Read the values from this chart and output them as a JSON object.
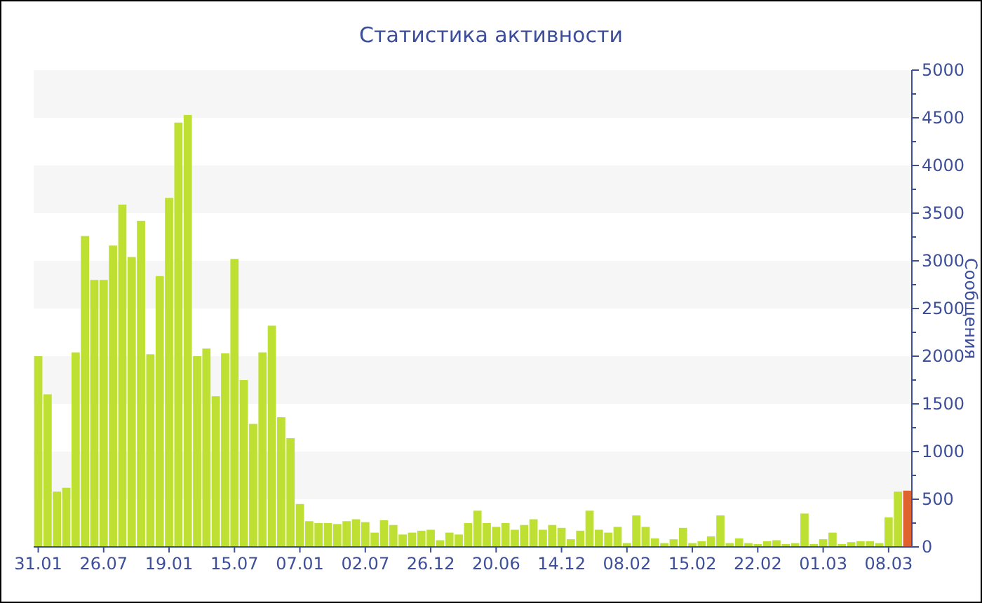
{
  "chart_data": {
    "type": "bar",
    "title": "Статистика активности",
    "ylabel": "Сообщения",
    "categories": [
      "31.01",
      null,
      null,
      null,
      null,
      null,
      null,
      "26.07",
      null,
      null,
      null,
      null,
      null,
      null,
      "19.01",
      null,
      null,
      null,
      null,
      null,
      null,
      "15.07",
      null,
      null,
      null,
      null,
      null,
      null,
      "07.01",
      null,
      null,
      null,
      null,
      null,
      null,
      "02.07",
      null,
      null,
      null,
      null,
      null,
      null,
      "26.12",
      null,
      null,
      null,
      null,
      null,
      null,
      "20.06",
      null,
      null,
      null,
      null,
      null,
      null,
      "14.12",
      null,
      null,
      null,
      null,
      null,
      null,
      "08.02",
      null,
      null,
      null,
      null,
      null,
      null,
      "15.02",
      null,
      null,
      null,
      null,
      null,
      null,
      "22.02",
      null,
      null,
      null,
      null,
      null,
      null,
      "01.03",
      null,
      null,
      null,
      null,
      null,
      null,
      "08.03",
      null,
      null
    ],
    "values": [
      2000,
      1600,
      580,
      620,
      2040,
      3260,
      2800,
      2800,
      3160,
      3590,
      3040,
      3420,
      2020,
      2840,
      3660,
      4450,
      4530,
      2000,
      2080,
      1580,
      2030,
      3020,
      1750,
      1290,
      2040,
      2320,
      1360,
      1140,
      450,
      270,
      250,
      250,
      240,
      270,
      290,
      260,
      150,
      280,
      230,
      130,
      150,
      170,
      180,
      70,
      150,
      130,
      250,
      380,
      250,
      210,
      250,
      180,
      230,
      290,
      180,
      230,
      200,
      80,
      170,
      380,
      180,
      150,
      210,
      40,
      330,
      210,
      90,
      40,
      80,
      200,
      40,
      60,
      110,
      330,
      40,
      90,
      40,
      30,
      60,
      70,
      30,
      40,
      350,
      30,
      80,
      150,
      30,
      50,
      60,
      60,
      40,
      310,
      580,
      590
    ],
    "colors": [
      "#bde033",
      "#bde033",
      "#bde033",
      "#bde033",
      "#bde033",
      "#bde033",
      "#bde033",
      "#bde033",
      "#bde033",
      "#bde033",
      "#bde033",
      "#bde033",
      "#bde033",
      "#bde033",
      "#bde033",
      "#bde033",
      "#bde033",
      "#bde033",
      "#bde033",
      "#bde033",
      "#bde033",
      "#bde033",
      "#bde033",
      "#bde033",
      "#bde033",
      "#bde033",
      "#bde033",
      "#bde033",
      "#bde033",
      "#bde033",
      "#bde033",
      "#bde033",
      "#bde033",
      "#bde033",
      "#bde033",
      "#bde033",
      "#bde033",
      "#bde033",
      "#bde033",
      "#bde033",
      "#bde033",
      "#bde033",
      "#bde033",
      "#bde033",
      "#bde033",
      "#bde033",
      "#bde033",
      "#bde033",
      "#bde033",
      "#bde033",
      "#bde033",
      "#bde033",
      "#bde033",
      "#bde033",
      "#bde033",
      "#bde033",
      "#bde033",
      "#bde033",
      "#bde033",
      "#bde033",
      "#bde033",
      "#bde033",
      "#bde033",
      "#bde033",
      "#bde033",
      "#bde033",
      "#bde033",
      "#bde033",
      "#bde033",
      "#bde033",
      "#bde033",
      "#bde033",
      "#bde033",
      "#bde033",
      "#bde033",
      "#bde033",
      "#bde033",
      "#bde033",
      "#bde033",
      "#bde033",
      "#bde033",
      "#bde033",
      "#bde033",
      "#bde033",
      "#bde033",
      "#bde033",
      "#bde033",
      "#bde033",
      "#bde033",
      "#bde033",
      "#bde033",
      "#bde033",
      "#bde033",
      "#e0622e"
    ],
    "ylim": [
      0,
      5000
    ],
    "yticks": [
      0,
      {
        "value": 250,
        "label": null
      },
      500,
      {
        "value": 750,
        "label": null
      },
      1000,
      {
        "value": 1250,
        "label": null
      },
      1500,
      {
        "value": 1750,
        "label": null
      },
      2000,
      {
        "value": 2250,
        "label": null
      },
      2500,
      {
        "value": 2750,
        "label": null
      },
      3000,
      {
        "value": 3250,
        "label": null
      },
      3500,
      {
        "value": 3750,
        "label": null
      },
      4000,
      {
        "value": 4250,
        "label": null
      },
      4500,
      {
        "value": 4750,
        "label": null
      },
      5000
    ],
    "bands": [
      {
        "axis": "y",
        "from": 500,
        "to": 1000,
        "color": "#f6f6f6"
      },
      {
        "axis": "y",
        "from": 1500,
        "to": 2000,
        "color": "#f6f6f6"
      },
      {
        "axis": "y",
        "from": 2500,
        "to": 3000,
        "color": "#f6f6f6"
      },
      {
        "axis": "y",
        "from": 3500,
        "to": 4000,
        "color": "#f6f6f6"
      },
      {
        "axis": "y",
        "from": 4500,
        "to": 5000,
        "color": "#f6f6f6"
      }
    ]
  }
}
